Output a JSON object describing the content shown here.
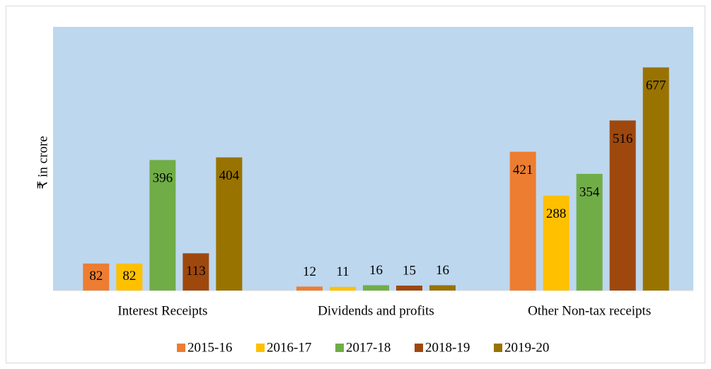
{
  "chart_data": {
    "type": "bar",
    "y_label": "₹ in crore",
    "categories": [
      "Interest Receipts",
      "Dividends and profits",
      "Other Non-tax receipts"
    ],
    "series": [
      {
        "name": "2015-16",
        "color": "#ed7d31",
        "values": [
          82,
          12,
          421
        ]
      },
      {
        "name": "2016-17",
        "color": "#ffc000",
        "values": [
          82,
          11,
          288
        ]
      },
      {
        "name": "2017-18",
        "color": "#70ad47",
        "values": [
          396,
          16,
          354
        ]
      },
      {
        "name": "2018-19",
        "color": "#9e480e",
        "values": [
          113,
          15,
          516
        ]
      },
      {
        "name": "2019-20",
        "color": "#997300",
        "values": [
          404,
          16,
          677
        ]
      }
    ],
    "ylim": [
      0,
      800
    ]
  }
}
